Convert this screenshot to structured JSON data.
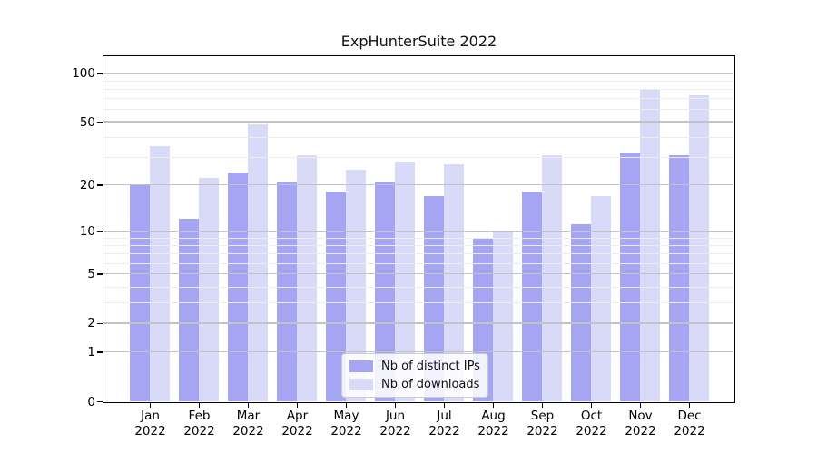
{
  "figure": {
    "background": "#ffffff"
  },
  "chart_data": {
    "type": "bar",
    "title": "ExpHunterSuite 2022",
    "categories": [
      "Jan 2022",
      "Feb 2022",
      "Mar 2022",
      "Apr 2022",
      "May 2022",
      "Jun 2022",
      "Jul 2022",
      "Aug 2022",
      "Sep 2022",
      "Oct 2022",
      "Nov 2022",
      "Dec 2022"
    ],
    "series": [
      {
        "name": "Nb of distinct IPs",
        "color": "#a5a5f3",
        "values": [
          20,
          12,
          24,
          21,
          18,
          21,
          17,
          9,
          18,
          11,
          32,
          31
        ]
      },
      {
        "name": "Nb of downloads",
        "color": "#d9d9f8",
        "values": [
          35,
          22,
          48,
          31,
          25,
          28,
          27,
          10,
          31,
          17,
          79,
          73
        ]
      }
    ],
    "xlabel": "",
    "ylabel": "",
    "y_scale": "log1p (pseudo-log)",
    "ylim": [
      0,
      127
    ],
    "y_ticks": [
      0,
      1,
      2,
      5,
      10,
      20,
      50,
      100
    ],
    "y_minor_gridlines": [
      3,
      4,
      6,
      7,
      8,
      9,
      30,
      40,
      60,
      70,
      80,
      90
    ],
    "grid": "horizontal, major and minor, drawn above bars",
    "legend": {
      "position": "bottom-center inside plot",
      "frame": "rounded light-gray border, semi-transparent white"
    },
    "colors": {
      "grid_major": "#c3c3c3",
      "grid_minor": "#ececec",
      "axis": "#000000",
      "text": "#111111"
    }
  }
}
